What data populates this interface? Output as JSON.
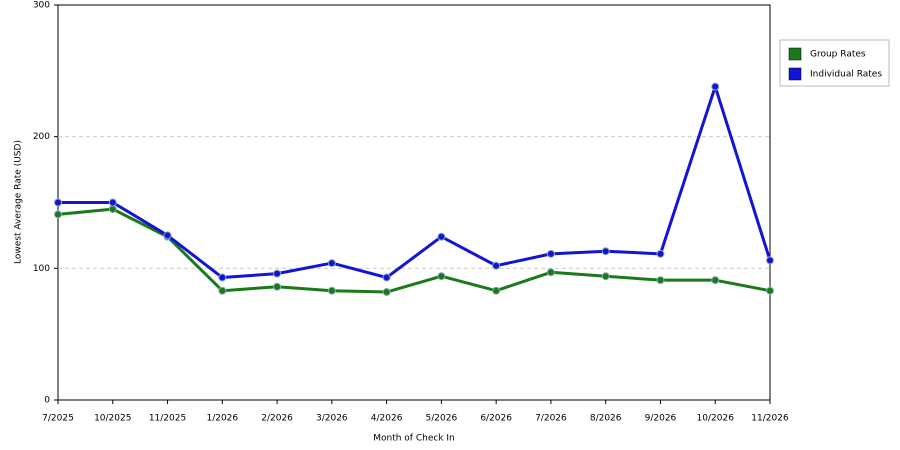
{
  "chart_data": {
    "type": "line",
    "x_label": "Month of Check In",
    "y_label": "Lowest Average Rate (USD)",
    "categories": [
      "7/2025",
      "10/2025",
      "11/2025",
      "1/2026",
      "2/2026",
      "3/2026",
      "4/2026",
      "5/2026",
      "6/2026",
      "7/2026",
      "8/2026",
      "9/2026",
      "10/2026",
      "11/2026"
    ],
    "series": [
      {
        "name": "Group Rates",
        "color": "#1a7a1a",
        "values": [
          141,
          145,
          124,
          83,
          86,
          83,
          82,
          94,
          83,
          97,
          94,
          91,
          91,
          83
        ]
      },
      {
        "name": "Individual Rates",
        "color": "#1414d4",
        "values": [
          150,
          150,
          125,
          93,
          96,
          104,
          93,
          124,
          102,
          111,
          113,
          111,
          238,
          106
        ]
      }
    ],
    "ylim": [
      0,
      300
    ],
    "yticks": [
      0,
      100,
      200,
      300
    ],
    "grid": true,
    "legend": "right"
  }
}
